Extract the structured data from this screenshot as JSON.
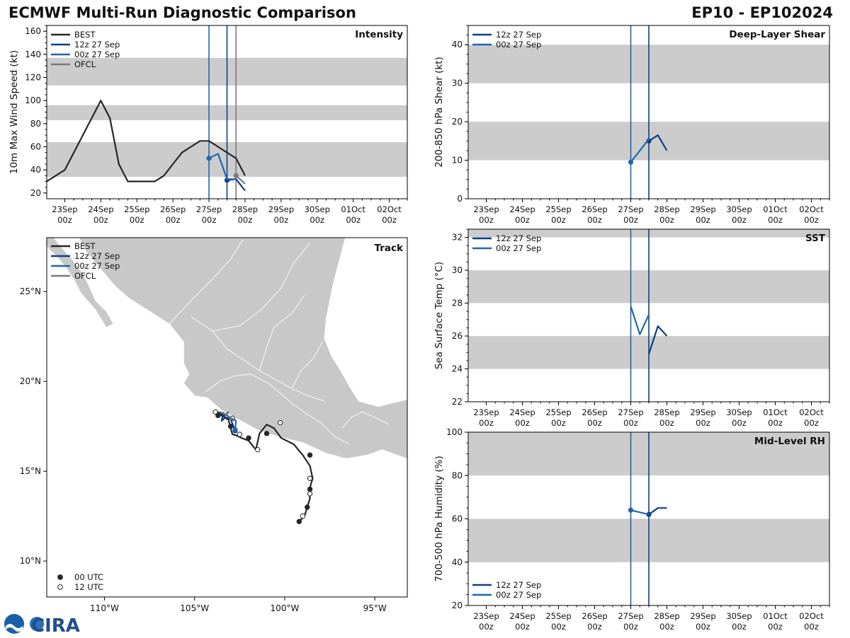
{
  "header": {
    "title": "ECMWF Multi-Run Diagnostic Comparison",
    "storm_id": "EP10 - EP102024"
  },
  "logo": {
    "text": "CIRA",
    "agency": "NOAA"
  },
  "colors": {
    "best": "#262626",
    "run_12z": "#0c3f8a",
    "run_00z": "#2166ac",
    "ofcl": "#7a7a7a",
    "band": "#cccccc",
    "land": "#c8c8c8"
  },
  "time_axis": {
    "ticks": [
      "23Sep 00z",
      "24Sep 00z",
      "25Sep 00z",
      "26Sep 00z",
      "27Sep 00z",
      "28Sep 00z",
      "29Sep 00z",
      "30Sep 00z",
      "01Oct 00z",
      "02Oct 00z"
    ],
    "tick_top": [
      "23Sep",
      "24Sep",
      "25Sep",
      "26Sep",
      "27Sep",
      "28Sep",
      "29Sep",
      "30Sep",
      "01Oct",
      "02Oct"
    ],
    "tick_bottom": "00z",
    "xlim_hours": [
      -12,
      228
    ],
    "unit": "hours since 23Sep 00z"
  },
  "chart_data": [
    {
      "id": "intensity",
      "type": "line",
      "title": "Intensity",
      "ylabel": "10m Max Wind Speed (kt)",
      "ylim": [
        15,
        165
      ],
      "yticks": [
        20,
        40,
        60,
        80,
        100,
        120,
        140,
        160
      ],
      "bands": [
        [
          34,
          64
        ],
        [
          83,
          96
        ],
        [
          113,
          137
        ]
      ],
      "vlines": [
        {
          "x": 96,
          "series": "00z 27 Sep"
        },
        {
          "x": 108,
          "series": "12z 27 Sep"
        },
        {
          "x": 114,
          "series": "OFCL"
        }
      ],
      "legend": [
        "BEST",
        "12z 27 Sep",
        "00z 27 Sep",
        "OFCL"
      ],
      "series": [
        {
          "name": "BEST",
          "x": [
            -12,
            0,
            12,
            18,
            24,
            30,
            36,
            42,
            48,
            54,
            60,
            66,
            72,
            78,
            84,
            90,
            96,
            102,
            108,
            114,
            120
          ],
          "y": [
            30,
            40,
            70,
            85,
            100,
            85,
            45,
            30,
            30,
            30,
            30,
            35,
            45,
            55,
            60,
            65,
            65,
            60,
            55,
            50,
            35
          ]
        },
        {
          "name": "12z 27 Sep",
          "x": [
            108,
            114,
            120
          ],
          "y": [
            31,
            32,
            22
          ],
          "markers_x": [
            108
          ]
        },
        {
          "name": "00z 27 Sep",
          "x": [
            96,
            102,
            108,
            114
          ],
          "y": [
            50,
            54,
            32,
            32
          ],
          "markers_x": [
            96
          ]
        },
        {
          "name": "OFCL",
          "x": [
            114,
            120
          ],
          "y": [
            35,
            28
          ],
          "markers_x": [
            114
          ]
        }
      ]
    },
    {
      "id": "shear",
      "type": "line",
      "title": "Deep-Layer Shear",
      "ylabel": "200-850 hPa Shear (kt)",
      "ylim": [
        0,
        45
      ],
      "yticks": [
        0,
        10,
        20,
        30,
        40
      ],
      "bands": [
        [
          10,
          20
        ],
        [
          30,
          40
        ]
      ],
      "vlines": [
        {
          "x": 96,
          "series": "00z 27 Sep"
        },
        {
          "x": 108,
          "series": "12z 27 Sep"
        }
      ],
      "legend": [
        "12z 27 Sep",
        "00z 27 Sep"
      ],
      "series": [
        {
          "name": "12z 27 Sep",
          "x": [
            108,
            114,
            120
          ],
          "y": [
            15,
            16.5,
            12.5
          ],
          "markers_x": [
            108
          ]
        },
        {
          "name": "00z 27 Sep",
          "x": [
            96,
            102,
            108
          ],
          "y": [
            9.5,
            12.5,
            15.5
          ],
          "markers_x": [
            96
          ]
        }
      ]
    },
    {
      "id": "sst",
      "type": "line",
      "title": "SST",
      "ylabel": "Sea Surface Temp (°C)",
      "ylim": [
        22,
        32.5
      ],
      "yticks": [
        22,
        24,
        26,
        28,
        30,
        32
      ],
      "bands": [
        [
          24,
          26
        ],
        [
          28,
          30
        ],
        [
          32,
          33
        ]
      ],
      "vlines": [
        {
          "x": 96,
          "series": "00z 27 Sep"
        },
        {
          "x": 108,
          "series": "12z 27 Sep"
        }
      ],
      "legend": [
        "12z 27 Sep",
        "00z 27 Sep"
      ],
      "series": [
        {
          "name": "12z 27 Sep",
          "x": [
            108,
            114,
            120
          ],
          "y": [
            24.9,
            26.6,
            26.0
          ]
        },
        {
          "name": "00z 27 Sep",
          "x": [
            96,
            102,
            108
          ],
          "y": [
            27.8,
            26.1,
            27.3
          ]
        }
      ]
    },
    {
      "id": "rh",
      "type": "line",
      "title": "Mid-Level RH",
      "ylabel": "700-500 hPa Humidity (%)",
      "ylim": [
        20,
        100
      ],
      "yticks": [
        20,
        40,
        60,
        80,
        100
      ],
      "bands": [
        [
          40,
          60
        ],
        [
          80,
          100
        ]
      ],
      "vlines": [
        {
          "x": 96,
          "series": "00z 27 Sep"
        },
        {
          "x": 108,
          "series": "12z 27 Sep"
        }
      ],
      "legend": [
        "12z 27 Sep",
        "00z 27 Sep"
      ],
      "series": [
        {
          "name": "12z 27 Sep",
          "x": [
            108,
            114,
            120
          ],
          "y": [
            62,
            65,
            65
          ],
          "markers_x": [
            108
          ]
        },
        {
          "name": "00z 27 Sep",
          "x": [
            96,
            102,
            108
          ],
          "y": [
            64,
            63,
            62
          ],
          "markers_x": [
            96
          ]
        }
      ]
    },
    {
      "id": "track",
      "type": "scatter",
      "title": "Track",
      "xlim": [
        -113.2,
        -93.2
      ],
      "ylim": [
        8,
        28
      ],
      "xticks": [
        -110,
        -105,
        -100,
        -95
      ],
      "xtick_labels": [
        "110°W",
        "105°W",
        "100°W",
        "95°W"
      ],
      "yticks": [
        10,
        15,
        20,
        25
      ],
      "ytick_labels": [
        "10°N",
        "15°N",
        "20°N",
        "25°N"
      ],
      "legend": [
        "BEST",
        "12z 27 Sep",
        "00z 27 Sep",
        "OFCL"
      ],
      "marker_legend": [
        "00 UTC",
        "12 UTC"
      ],
      "series": [
        {
          "name": "BEST",
          "lon": [
            -99.2,
            -98.9,
            -98.75,
            -98.6,
            -98.65,
            -98.6,
            -98.45,
            -98.6,
            -99.0,
            -99.5,
            -100.2,
            -100.6,
            -101.0,
            -101.4,
            -101.5,
            -101.6,
            -102.0,
            -102.4,
            -102.7,
            -102.9,
            -103.0,
            -103.1,
            -103.15,
            -103.2,
            -103.4,
            -103.8,
            -103.9,
            -103.6,
            -103.3
          ],
          "lat": [
            12.2,
            12.5,
            13.0,
            13.5,
            13.8,
            14.1,
            14.6,
            15.3,
            15.9,
            16.5,
            16.85,
            17.4,
            17.6,
            17.1,
            16.65,
            16.2,
            16.7,
            16.85,
            17.0,
            17.05,
            17.4,
            17.8,
            18.0,
            17.9,
            18.05,
            18.25,
            18.35,
            18.25,
            18.05
          ],
          "dots": [
            {
              "lon": -99.2,
              "lat": 12.2,
              "t": "00"
            },
            {
              "lon": -99.0,
              "lat": 12.5,
              "t": "12"
            },
            {
              "lon": -98.75,
              "lat": 13.0,
              "t": "00"
            },
            {
              "lon": -98.6,
              "lat": 13.75,
              "t": "12"
            },
            {
              "lon": -98.6,
              "lat": 14.0,
              "t": "00"
            },
            {
              "lon": -98.6,
              "lat": 14.6,
              "t": "12"
            },
            {
              "lon": -98.6,
              "lat": 15.9,
              "t": "00"
            },
            {
              "lon": -100.25,
              "lat": 17.7,
              "t": "12"
            },
            {
              "lon": -101.0,
              "lat": 17.1,
              "t": "00"
            },
            {
              "lon": -101.5,
              "lat": 16.2,
              "t": "12"
            },
            {
              "lon": -102.0,
              "lat": 16.85,
              "t": "00"
            },
            {
              "lon": -102.5,
              "lat": 17.05,
              "t": "12"
            },
            {
              "lon": -103.0,
              "lat": 17.5,
              "t": "00"
            },
            {
              "lon": -102.9,
              "lat": 17.95,
              "t": "12"
            },
            {
              "lon": -103.7,
              "lat": 18.1,
              "t": "00"
            },
            {
              "lon": -103.85,
              "lat": 18.3,
              "t": "12"
            }
          ]
        },
        {
          "name": "12z 27 Sep",
          "lon": [
            -102.75,
            -103.0,
            -103.3,
            -103.5,
            -103.4
          ],
          "lat": [
            17.25,
            17.9,
            18.0,
            17.8,
            18.3
          ],
          "markers": [
            {
              "lon": -102.75,
              "lat": 17.25
            }
          ]
        },
        {
          "name": "00z 27 Sep",
          "lon": [
            -102.75,
            -102.7,
            -103.3,
            -103.1
          ],
          "lat": [
            17.3,
            17.8,
            18.15,
            18.3
          ],
          "markers": [
            {
              "lon": -102.75,
              "lat": 17.3
            }
          ]
        },
        {
          "name": "OFCL",
          "lon": [
            -103.6,
            -103.2,
            -102.9
          ],
          "lat": [
            18.3,
            18.15,
            17.85
          ]
        }
      ]
    }
  ]
}
